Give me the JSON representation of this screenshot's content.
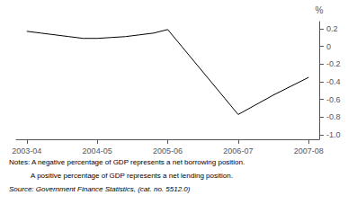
{
  "chart_data": {
    "type": "line",
    "x": [
      0,
      0.2,
      0.4,
      0.6,
      0.8,
      1.0,
      1.2,
      1.4,
      1.6,
      1.8,
      2.0,
      3.0,
      3.5,
      4.0
    ],
    "values": [
      0.17,
      0.15,
      0.13,
      0.11,
      0.09,
      0.09,
      0.1,
      0.11,
      0.13,
      0.15,
      0.19,
      -0.77,
      -0.55,
      -0.35
    ],
    "color": "#000000",
    "xlim": [
      -0.15,
      4.15
    ],
    "xticks": [
      {
        "value": 0,
        "label": "2003-04"
      },
      {
        "value": 1,
        "label": "2004-05"
      },
      {
        "value": 2,
        "label": "2005-06"
      },
      {
        "value": 3,
        "label": "2006-07"
      },
      {
        "value": 4,
        "label": "2007-08"
      }
    ],
    "ylim": [
      -1.05,
      0.28
    ],
    "yticks": [
      0.2,
      0,
      -0.2,
      -0.4,
      -0.6,
      -0.8,
      {
        "value": -1.0,
        "label": "-1.0"
      }
    ],
    "y_label": "%",
    "annotations": [
      "Notes: A negative percentage of GDP represents a net borrowing position.",
      "           A positive percentage of GDP represents a net lending position.",
      "Source: Government Finance Statistics, (cat. no. 5512.0)"
    ],
    "grid": false
  }
}
